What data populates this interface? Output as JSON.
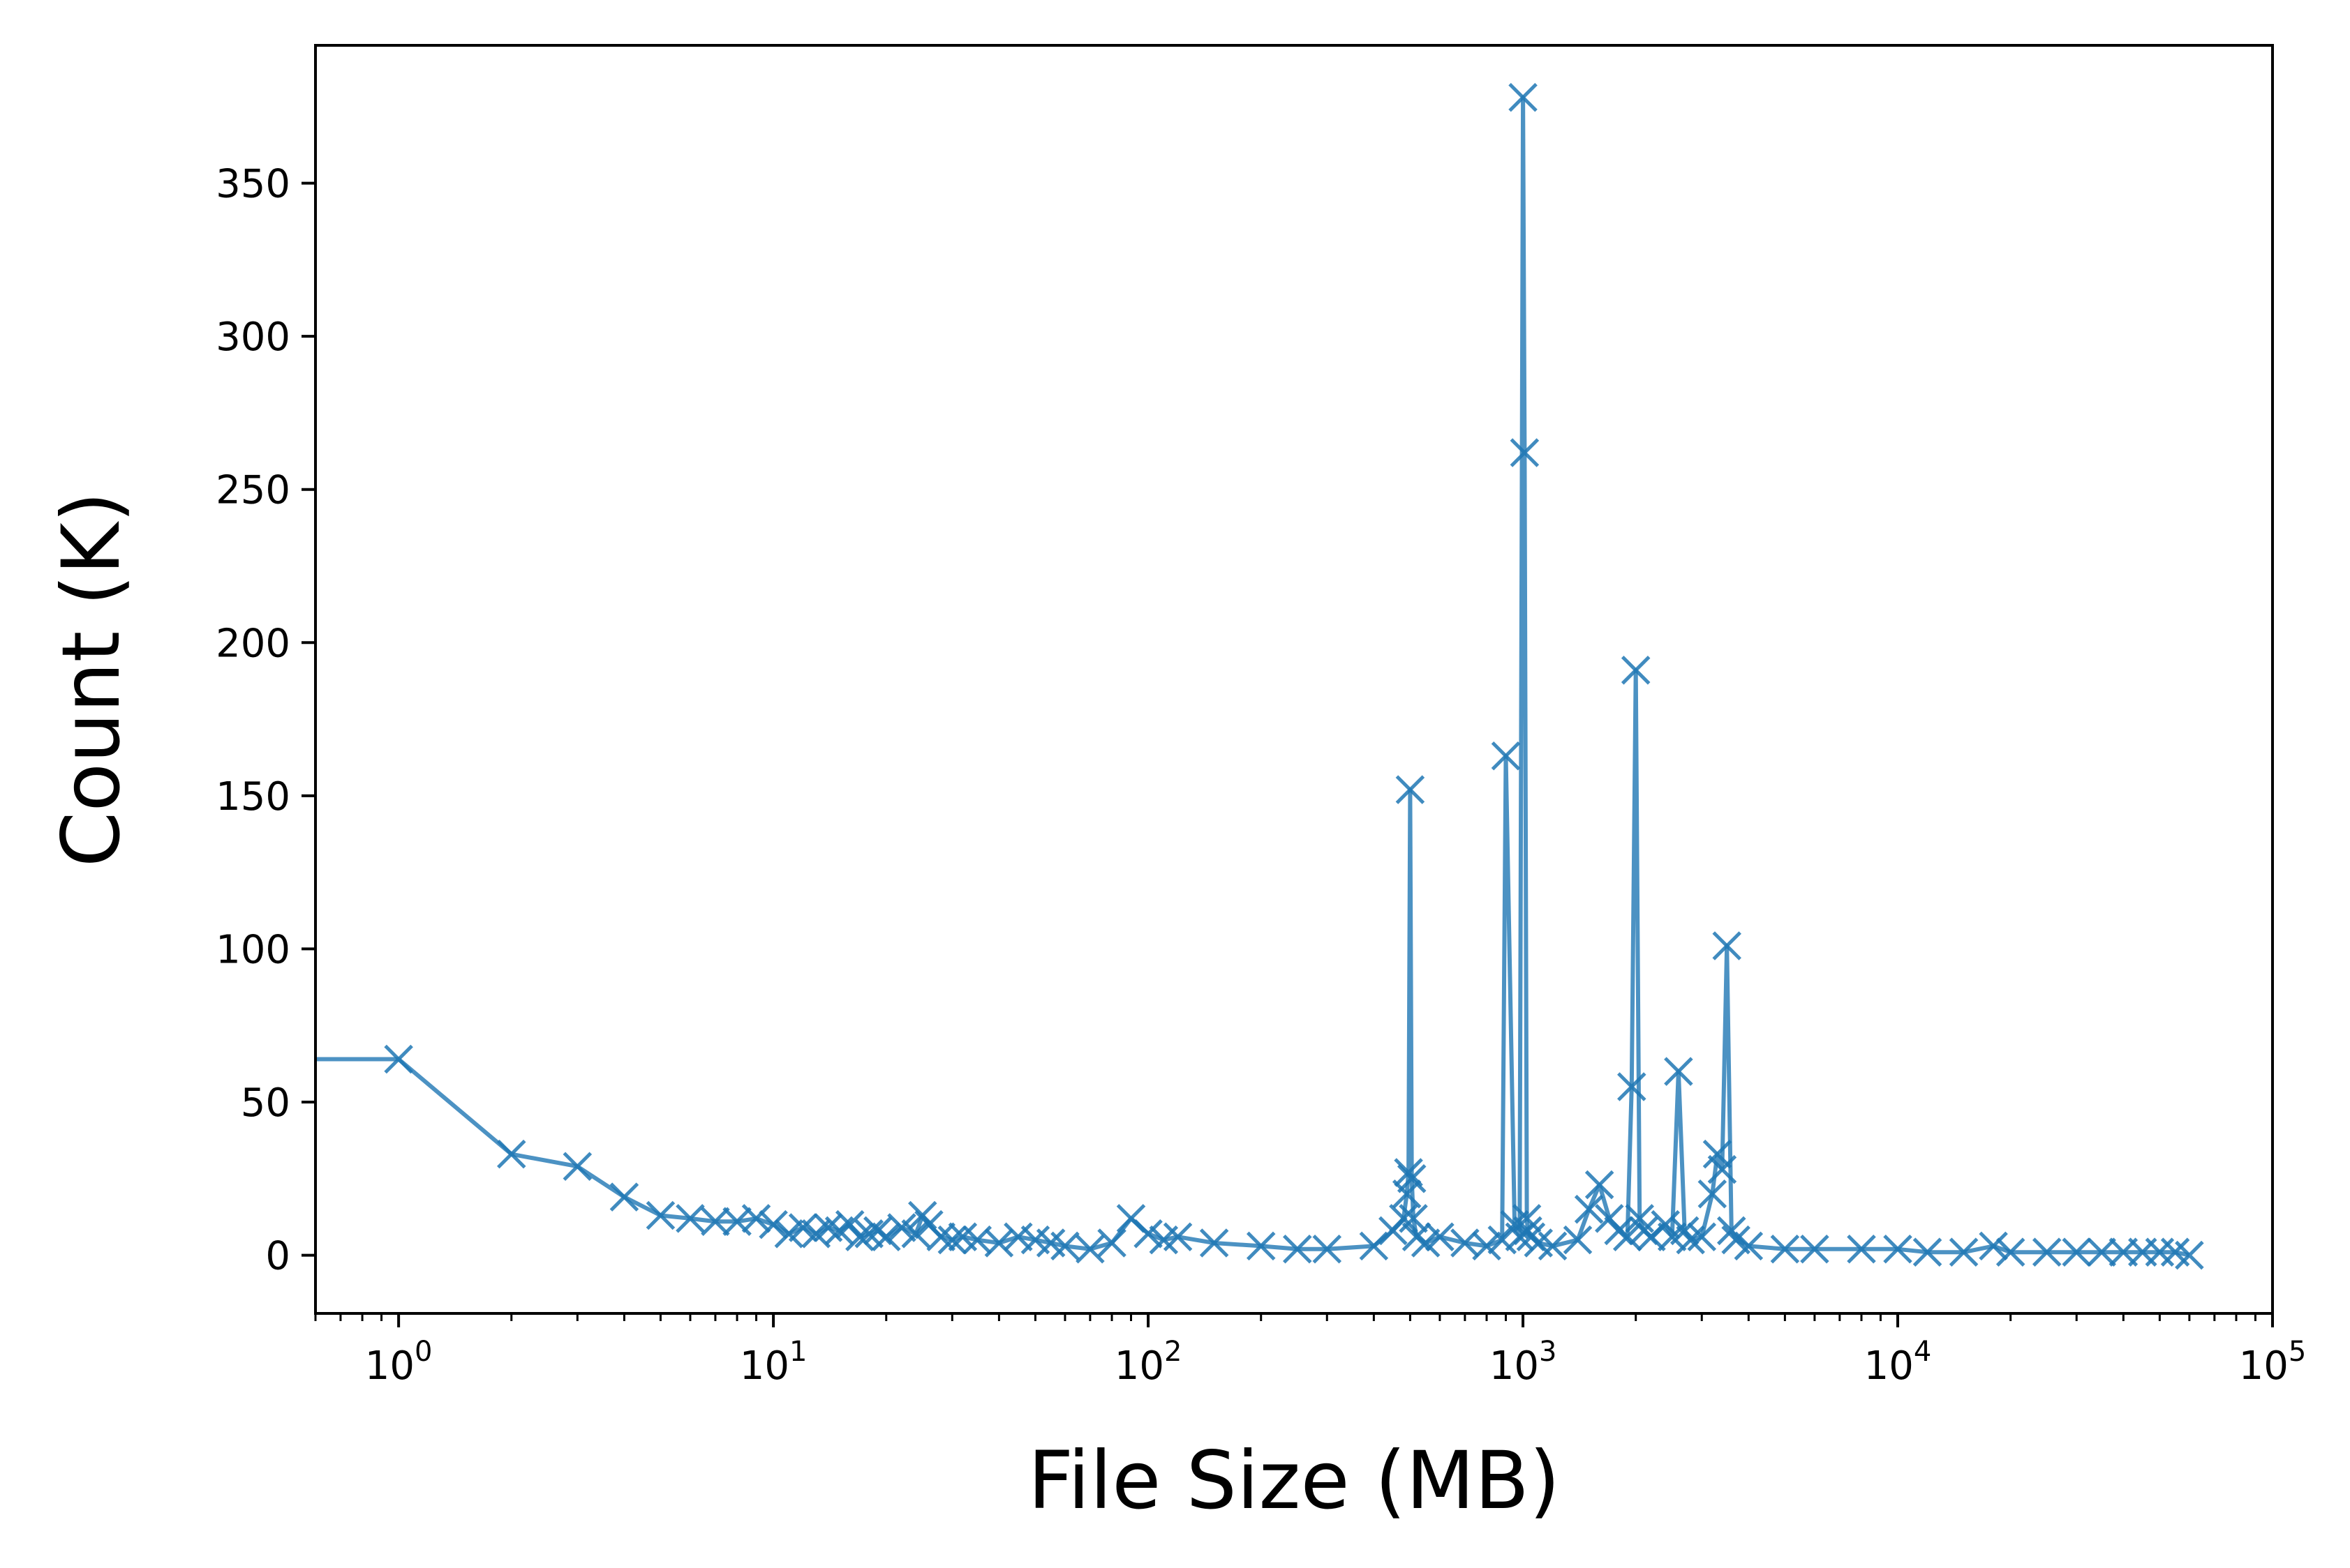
{
  "chart_data": {
    "type": "line",
    "title": "",
    "xlabel": "File Size (MB)",
    "ylabel": "Count (K)",
    "xscale": "log",
    "xlim": [
      0.6,
      100000
    ],
    "ylim": [
      -19,
      395
    ],
    "grid": false,
    "legend": "none",
    "marker": "x",
    "color": "#1f77b4",
    "x_ticks": [
      {
        "value": 1,
        "base": "10",
        "exp": "0"
      },
      {
        "value": 10,
        "base": "10",
        "exp": "1"
      },
      {
        "value": 100,
        "base": "10",
        "exp": "2"
      },
      {
        "value": 1000,
        "base": "10",
        "exp": "3"
      },
      {
        "value": 10000,
        "base": "10",
        "exp": "4"
      },
      {
        "value": 100000,
        "base": "10",
        "exp": "5"
      }
    ],
    "y_ticks": [
      {
        "value": 0,
        "label": "0"
      },
      {
        "value": 50,
        "label": "50"
      },
      {
        "value": 100,
        "label": "100"
      },
      {
        "value": 150,
        "label": "150"
      },
      {
        "value": 200,
        "label": "200"
      },
      {
        "value": 250,
        "label": "250"
      },
      {
        "value": 300,
        "label": "300"
      },
      {
        "value": 350,
        "label": "350"
      }
    ],
    "series": [
      {
        "x": [
          0.6,
          1,
          2,
          3,
          4,
          5,
          6,
          7,
          8,
          9,
          10,
          11,
          12,
          13,
          14,
          15,
          16,
          17,
          18,
          19,
          20,
          22,
          24,
          25,
          26,
          28,
          30,
          32,
          35,
          40,
          45,
          50,
          55,
          60,
          70,
          80,
          90,
          100,
          110,
          120,
          150,
          200,
          250,
          300,
          400,
          450,
          480,
          490,
          495,
          500,
          505,
          510,
          520,
          550,
          600,
          700,
          800,
          880,
          900,
          950,
          980,
          1000,
          1010,
          1024,
          1030,
          1050,
          1100,
          1200,
          1400,
          1500,
          1600,
          1700,
          1800,
          1900,
          1950,
          2000,
          2048,
          2100,
          2200,
          2400,
          2500,
          2600,
          2700,
          2800,
          3000,
          3200,
          3300,
          3400,
          3500,
          3600,
          3700,
          4000,
          5000,
          6000,
          8000,
          10000,
          12000,
          15000,
          18000,
          20000,
          25000,
          30000,
          35000,
          40000,
          45000,
          50000,
          55000,
          60000
        ],
        "y": [
          64,
          64,
          33,
          29,
          19,
          13,
          12,
          11,
          11,
          12,
          10,
          7,
          9,
          7,
          9,
          8,
          10,
          6,
          7,
          8,
          6,
          9,
          7,
          13,
          10,
          6,
          5,
          6,
          5,
          4,
          6,
          5,
          4,
          3,
          2,
          4,
          12,
          7,
          5,
          6,
          4,
          3,
          2,
          2,
          3,
          8,
          12,
          20,
          27,
          152,
          25,
          12,
          6,
          4,
          6,
          4,
          3,
          5,
          163,
          10,
          6,
          378,
          262,
          12,
          8,
          6,
          4,
          3,
          5,
          15,
          23,
          12,
          8,
          6,
          55,
          191,
          12,
          8,
          6,
          10,
          6,
          60,
          8,
          5,
          6,
          20,
          33,
          28,
          101,
          8,
          5,
          3,
          2,
          2,
          2,
          2,
          1,
          1,
          3,
          1,
          1,
          1,
          1,
          1,
          1,
          1,
          1,
          0
        ]
      }
    ]
  }
}
